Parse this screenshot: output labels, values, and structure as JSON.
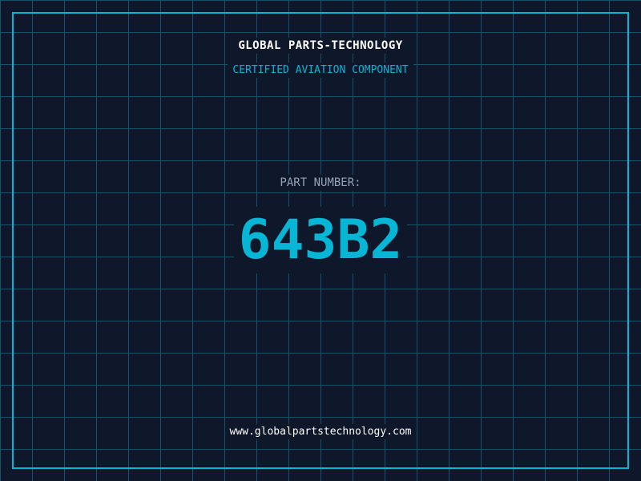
{
  "company": "GLOBAL PARTS-TECHNOLOGY",
  "subtitle": "CERTIFIED AVIATION COMPONENT",
  "part_label": "PART NUMBER:",
  "part_number": "643B2",
  "website": "www.globalpartstechnology.com",
  "colors": {
    "background": "#0f172a",
    "accent": "#06b6d4",
    "grid": "#155e75",
    "label": "#94a3b8"
  }
}
